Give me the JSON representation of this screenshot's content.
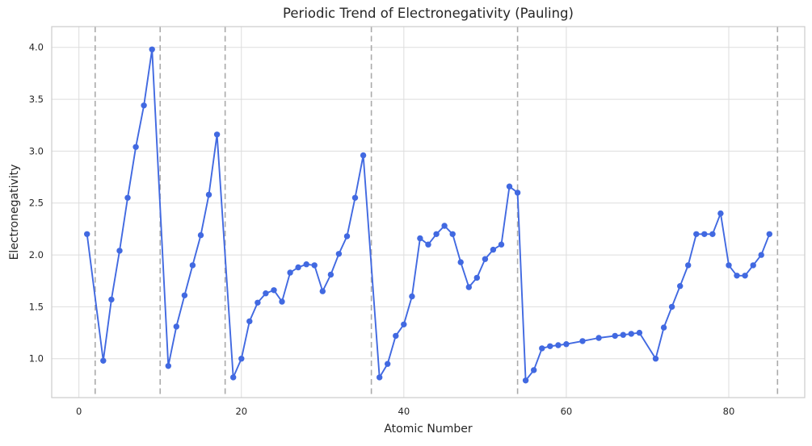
{
  "figure": {
    "title": "Periodic Trend of Electronegativity (Pauling)"
  },
  "chart_data": {
    "type": "line",
    "title": "Periodic Trend of Electronegativity (Pauling)",
    "xlabel": "Atomic Number",
    "ylabel": "Electronegativity",
    "xlim": [
      -3.35,
      89.35
    ],
    "ylim": [
      0.625,
      4.2
    ],
    "x_ticks": [
      0,
      20,
      40,
      60,
      80
    ],
    "y_ticks": [
      1.0,
      1.5,
      2.0,
      2.5,
      3.0,
      3.5,
      4.0
    ],
    "grid": true,
    "legend": false,
    "noble_gas_x": [
      2,
      10,
      18,
      36,
      54,
      86
    ],
    "colors": {
      "line": "#4169e1",
      "marker": "#4169e1",
      "grid": "#dddddd",
      "spine": "#cccccc",
      "noble_gas_line": "#aaaaaa",
      "text": "#262626"
    },
    "x": [
      1,
      3,
      4,
      5,
      6,
      7,
      8,
      9,
      11,
      12,
      13,
      14,
      15,
      16,
      17,
      19,
      20,
      21,
      22,
      23,
      24,
      25,
      26,
      27,
      28,
      29,
      30,
      31,
      32,
      33,
      34,
      35,
      37,
      38,
      39,
      40,
      41,
      42,
      43,
      44,
      45,
      46,
      47,
      48,
      49,
      50,
      51,
      52,
      53,
      54,
      55,
      56,
      57,
      58,
      59,
      60,
      62,
      64,
      66,
      67,
      68,
      69,
      71,
      72,
      73,
      74,
      75,
      76,
      77,
      78,
      79,
      80,
      81,
      82,
      83,
      84,
      85
    ],
    "y": [
      2.2,
      0.98,
      1.57,
      2.04,
      2.55,
      3.04,
      3.44,
      3.98,
      0.93,
      1.31,
      1.61,
      1.9,
      2.19,
      2.58,
      3.16,
      0.82,
      1.0,
      1.36,
      1.54,
      1.63,
      1.66,
      1.55,
      1.83,
      1.88,
      1.91,
      1.9,
      1.65,
      1.81,
      2.01,
      2.18,
      2.55,
      2.96,
      0.82,
      0.95,
      1.22,
      1.33,
      1.6,
      2.16,
      2.1,
      2.2,
      2.28,
      2.2,
      1.93,
      1.69,
      1.78,
      1.96,
      2.05,
      2.1,
      2.66,
      2.6,
      0.79,
      0.89,
      1.1,
      1.12,
      1.13,
      1.14,
      1.17,
      1.2,
      1.22,
      1.23,
      1.24,
      1.25,
      1.0,
      1.3,
      1.5,
      1.7,
      1.9,
      2.2,
      2.2,
      2.2,
      2.4,
      1.9,
      1.8,
      1.8,
      1.9,
      2.0,
      2.2
    ]
  }
}
